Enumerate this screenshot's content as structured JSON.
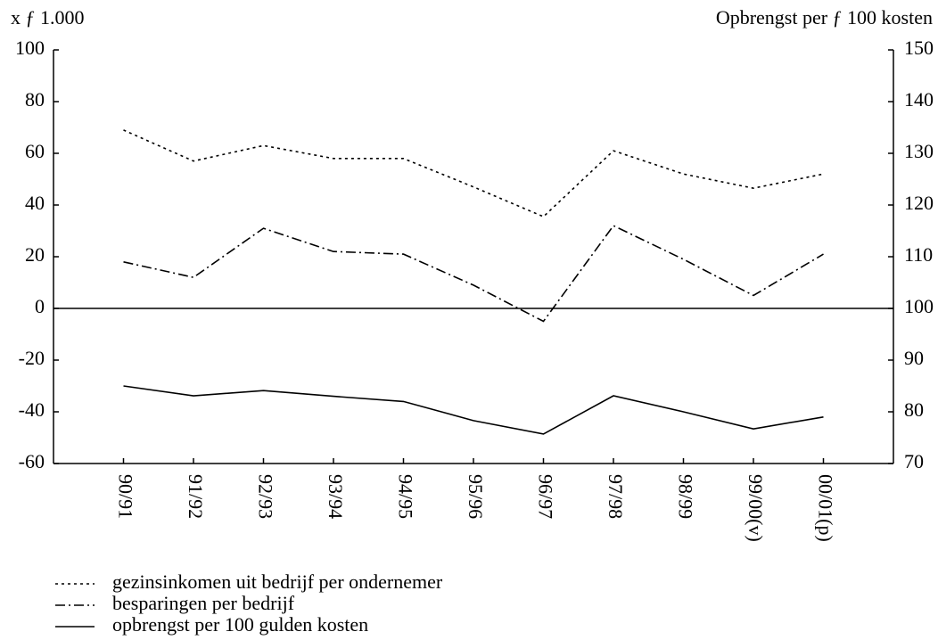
{
  "chart_data": {
    "type": "line",
    "y_label": "x ƒ 1.000",
    "y2_label": "Opbrengst per ƒ 100 kosten",
    "categories": [
      "90/91",
      "91/92",
      "92/93",
      "93/94",
      "94/95",
      "95/96",
      "96/97",
      "97/98",
      "98/99",
      "99/00(v)",
      "00/01(p)"
    ],
    "series": [
      {
        "name": "gezinsinkomen uit bedrijf per ondernemer",
        "color": "#000000",
        "line_style": "dotted",
        "values": [
          69,
          57,
          63,
          58,
          58,
          47,
          35.5,
          61,
          52,
          46.5,
          52
        ]
      },
      {
        "name": "besparingen per bedrijf",
        "color": "#000000",
        "line_style": "dashdot",
        "values": [
          18,
          12,
          31,
          22,
          21,
          9,
          -5,
          32,
          19,
          5,
          21
        ]
      },
      {
        "name": "opbrengst per 100 gulden kosten",
        "color": "#000000",
        "line_style": "solid",
        "axis": "y2",
        "values": [
          85,
          83.1,
          84.1,
          83,
          82,
          78.3,
          75.7,
          83.1,
          80,
          76.7,
          79
        ]
      }
    ],
    "ylim": [
      -60,
      100
    ],
    "yticks": [
      -60,
      -40,
      -20,
      0,
      20,
      40,
      60,
      80,
      100
    ],
    "y2lim": [
      70,
      150
    ],
    "y2ticks": [
      70,
      80,
      90,
      100,
      110,
      120,
      130,
      140,
      150
    ]
  }
}
